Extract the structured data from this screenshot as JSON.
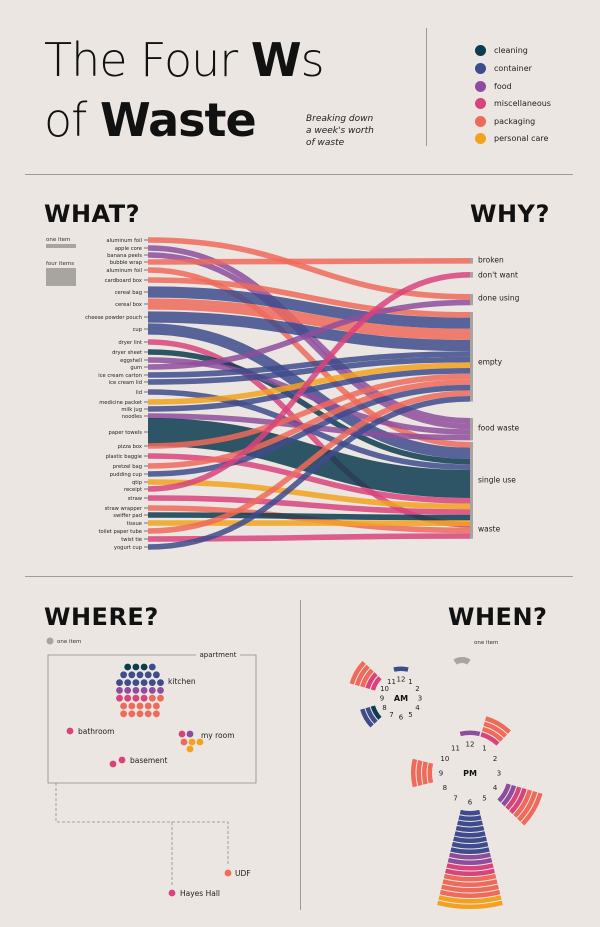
{
  "header": {
    "title_line1_a": "The Four ",
    "title_line1_w": "W",
    "title_line1_b": "s",
    "title_line2_a": "of ",
    "title_line2_b": "Waste",
    "subtitle_line1": "Breaking down",
    "subtitle_line2": "a week's worth",
    "subtitle_line3": "of waste"
  },
  "legend": [
    {
      "label": "cleaning",
      "color": "#0d3b4f"
    },
    {
      "label": "container",
      "color": "#3e4b8c"
    },
    {
      "label": "food",
      "color": "#8e4d9c"
    },
    {
      "label": "miscellaneous",
      "color": "#d9437b"
    },
    {
      "label": "packaging",
      "color": "#ee6a5a"
    },
    {
      "label": "personal care",
      "color": "#f2a21e"
    }
  ],
  "sections": {
    "what": "WHAT?",
    "why": "WHY?",
    "where": "WHERE?",
    "when": "WHEN?"
  },
  "what_key": {
    "one": "one item",
    "four": "four items"
  },
  "where_key": "one item",
  "when_key": "one item",
  "chart_data": [
    {
      "type": "sankey",
      "name": "what-why",
      "items": [
        {
          "label": "aluminum foil",
          "count": 1,
          "category": "packaging",
          "reason": "done using"
        },
        {
          "label": "apple core",
          "count": 1,
          "category": "food",
          "reason": "food waste"
        },
        {
          "label": "banana peels",
          "count": 1,
          "category": "food",
          "reason": "food waste"
        },
        {
          "label": "bubble wrap",
          "count": 1,
          "category": "packaging",
          "reason": "broken"
        },
        {
          "label": "aluminum foil",
          "count": 1,
          "category": "packaging",
          "reason": "single use"
        },
        {
          "label": "cardboard box",
          "count": 1,
          "category": "packaging",
          "reason": "empty"
        },
        {
          "label": "cereal bag",
          "count": 2,
          "category": "container",
          "reason": "empty"
        },
        {
          "label": "cereal box",
          "count": 2,
          "category": "packaging",
          "reason": "empty"
        },
        {
          "label": "cheese powder pouch",
          "count": 2,
          "category": "container",
          "reason": "empty"
        },
        {
          "label": "cup",
          "count": 2,
          "category": "container",
          "reason": "single use"
        },
        {
          "label": "dryer lint",
          "count": 1,
          "category": "miscellaneous",
          "reason": "waste"
        },
        {
          "label": "dryer sheet",
          "count": 1,
          "category": "cleaning",
          "reason": "single use"
        },
        {
          "label": "eggshell",
          "count": 1,
          "category": "food",
          "reason": "food waste"
        },
        {
          "label": "gum",
          "count": 1,
          "category": "food",
          "reason": "done using"
        },
        {
          "label": "ice cream carton",
          "count": 1,
          "category": "container",
          "reason": "empty"
        },
        {
          "label": "ice cream lid",
          "count": 1,
          "category": "container",
          "reason": "empty"
        },
        {
          "label": "lid",
          "count": 1,
          "category": "container",
          "reason": "single use"
        },
        {
          "label": "medicine packet",
          "count": 1,
          "category": "personal care",
          "reason": "empty"
        },
        {
          "label": "milk jug",
          "count": 1,
          "category": "container",
          "reason": "empty"
        },
        {
          "label": "noodles",
          "count": 1,
          "category": "food",
          "reason": "food waste"
        },
        {
          "label": "paper towels",
          "count": 5,
          "category": "cleaning",
          "reason": "single use"
        },
        {
          "label": "pizza box",
          "count": 1,
          "category": "packaging",
          "reason": "empty"
        },
        {
          "label": "plastic baggie",
          "count": 1,
          "category": "miscellaneous",
          "reason": "single use"
        },
        {
          "label": "pretzel bag",
          "count": 1,
          "category": "packaging",
          "reason": "empty"
        },
        {
          "label": "pudding cup",
          "count": 1,
          "category": "container",
          "reason": "empty"
        },
        {
          "label": "qtip",
          "count": 1,
          "category": "personal care",
          "reason": "single use"
        },
        {
          "label": "receipt",
          "count": 1,
          "category": "miscellaneous",
          "reason": "don't want"
        },
        {
          "label": "straw",
          "count": 1,
          "category": "miscellaneous",
          "reason": "single use"
        },
        {
          "label": "straw wrapper",
          "count": 1,
          "category": "packaging",
          "reason": "waste"
        },
        {
          "label": "swiffer pad",
          "count": 1,
          "category": "cleaning",
          "reason": "single use"
        },
        {
          "label": "tissue",
          "count": 1,
          "category": "personal care",
          "reason": "single use"
        },
        {
          "label": "toilet paper tube",
          "count": 1,
          "category": "packaging",
          "reason": "empty"
        },
        {
          "label": "twist tie",
          "count": 1,
          "category": "miscellaneous",
          "reason": "waste"
        },
        {
          "label": "yogurt cup",
          "count": 1,
          "category": "container",
          "reason": "empty"
        }
      ],
      "reasons": [
        "broken",
        "don't want",
        "done using",
        "empty",
        "food waste",
        "single use",
        "waste"
      ]
    },
    {
      "type": "dot-map",
      "name": "where",
      "region_label": "apartment",
      "locations": [
        {
          "label": "kitchen",
          "count": 37,
          "colors": [
            "#0d3b4f",
            "#0d3b4f",
            "#0d3b4f",
            "#3e4b8c",
            "#3e4b8c",
            "#3e4b8c",
            "#3e4b8c",
            "#3e4b8c",
            "#3e4b8c",
            "#3e4b8c",
            "#3e4b8c",
            "#3e4b8c",
            "#3e4b8c",
            "#3e4b8c",
            "#3e4b8c",
            "#8e4d9c",
            "#8e4d9c",
            "#8e4d9c",
            "#8e4d9c",
            "#8e4d9c",
            "#8e4d9c",
            "#d9437b",
            "#d9437b",
            "#d9437b",
            "#d9437b",
            "#ee6a5a",
            "#ee6a5a",
            "#ee6a5a",
            "#ee6a5a",
            "#ee6a5a",
            "#ee6a5a",
            "#ee6a5a",
            "#ee6a5a",
            "#ee6a5a",
            "#ee6a5a",
            "#ee6a5a",
            "#ee6a5a"
          ]
        },
        {
          "label": "bathroom",
          "count": 1,
          "colors": [
            "#d9437b"
          ]
        },
        {
          "label": "my room",
          "count": 6,
          "colors": [
            "#d9437b",
            "#8e4d9c",
            "#ee6a5a",
            "#f2a21e",
            "#f2a21e",
            "#f2a21e"
          ]
        },
        {
          "label": "basement",
          "count": 2,
          "colors": [
            "#d9437b",
            "#d9437b"
          ]
        },
        {
          "label": "UDF",
          "count": 1,
          "colors": [
            "#ee6a5a"
          ]
        },
        {
          "label": "Hayes Hall",
          "count": 1,
          "colors": [
            "#d9437b"
          ]
        }
      ]
    },
    {
      "type": "radial-bar",
      "name": "when",
      "hours": [
        "12",
        "1",
        "2",
        "3",
        "4",
        "5",
        "6",
        "7",
        "8",
        "9",
        "10",
        "11"
      ],
      "am": {
        "label": "AM",
        "counts": [
          {
            "hour": "12",
            "colors": [
              "#3e4b8c"
            ]
          },
          {
            "hour": "8",
            "colors": [
              "#0d3b4f",
              "#3e4b8c",
              "#3e4b8c"
            ]
          },
          {
            "hour": "10",
            "colors": [
              "#d9437b",
              "#d9437b",
              "#ee6a5a",
              "#ee6a5a",
              "#ee6a5a"
            ]
          }
        ]
      },
      "pm": {
        "label": "PM",
        "counts": [
          {
            "hour": "1",
            "colors": [
              "#d9437b",
              "#ee6a5a",
              "#ee6a5a",
              "#ee6a5a"
            ]
          },
          {
            "hour": "4",
            "colors": [
              "#8e4d9c",
              "#8e4d9c",
              "#d9437b",
              "#d9437b",
              "#ee6a5a",
              "#ee6a5a",
              "#ee6a5a"
            ]
          },
          {
            "hour": "6",
            "colors": [
              "#3e4b8c",
              "#3e4b8c",
              "#3e4b8c",
              "#3e4b8c",
              "#3e4b8c",
              "#3e4b8c",
              "#3e4b8c",
              "#3e4b8c",
              "#8e4d9c",
              "#8e4d9c",
              "#d9437b",
              "#d9437b",
              "#ee6a5a",
              "#ee6a5a",
              "#ee6a5a",
              "#ee6a5a",
              "#f2a21e",
              "#f2a21e"
            ]
          },
          {
            "hour": "9",
            "colors": [
              "#ee6a5a",
              "#ee6a5a",
              "#ee6a5a",
              "#ee6a5a"
            ]
          },
          {
            "hour": "12",
            "colors": [
              "#8e4d9c"
            ]
          }
        ]
      }
    }
  ]
}
